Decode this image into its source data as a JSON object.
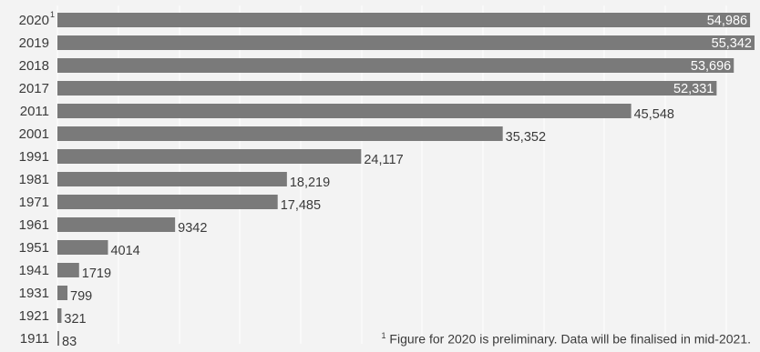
{
  "chart_data": {
    "type": "bar",
    "orientation": "horizontal",
    "categories": [
      "2020",
      "2019",
      "2018",
      "2017",
      "2011",
      "2001",
      "1991",
      "1981",
      "1971",
      "1961",
      "1951",
      "1941",
      "1931",
      "1921",
      "1911"
    ],
    "category_marks": [
      "1",
      "",
      "",
      "",
      "",
      "",
      "",
      "",
      "",
      "",
      "",
      "",
      "",
      "",
      ""
    ],
    "values": [
      54986,
      55342,
      53696,
      52331,
      45548,
      35352,
      24117,
      18219,
      17485,
      9342,
      4014,
      1719,
      799,
      321,
      83
    ],
    "value_labels": [
      "54,986",
      "55,342",
      "53,696",
      "52,331",
      "45,548",
      "35,352",
      "24,117",
      "18,219",
      "17,485",
      "9342",
      "4014",
      "1719",
      "799",
      "321",
      "83"
    ],
    "title": "",
    "xlabel": "",
    "ylabel": "",
    "xlim": [
      0,
      55342
    ],
    "grid": true,
    "bar_color": "#7a7a7a",
    "grid_color": "#ffffff",
    "background_color": "#f3f3f3"
  },
  "footnote": {
    "mark": "1",
    "text": "Figure for 2020 is preliminary. Data will be finalised in mid-2021."
  }
}
